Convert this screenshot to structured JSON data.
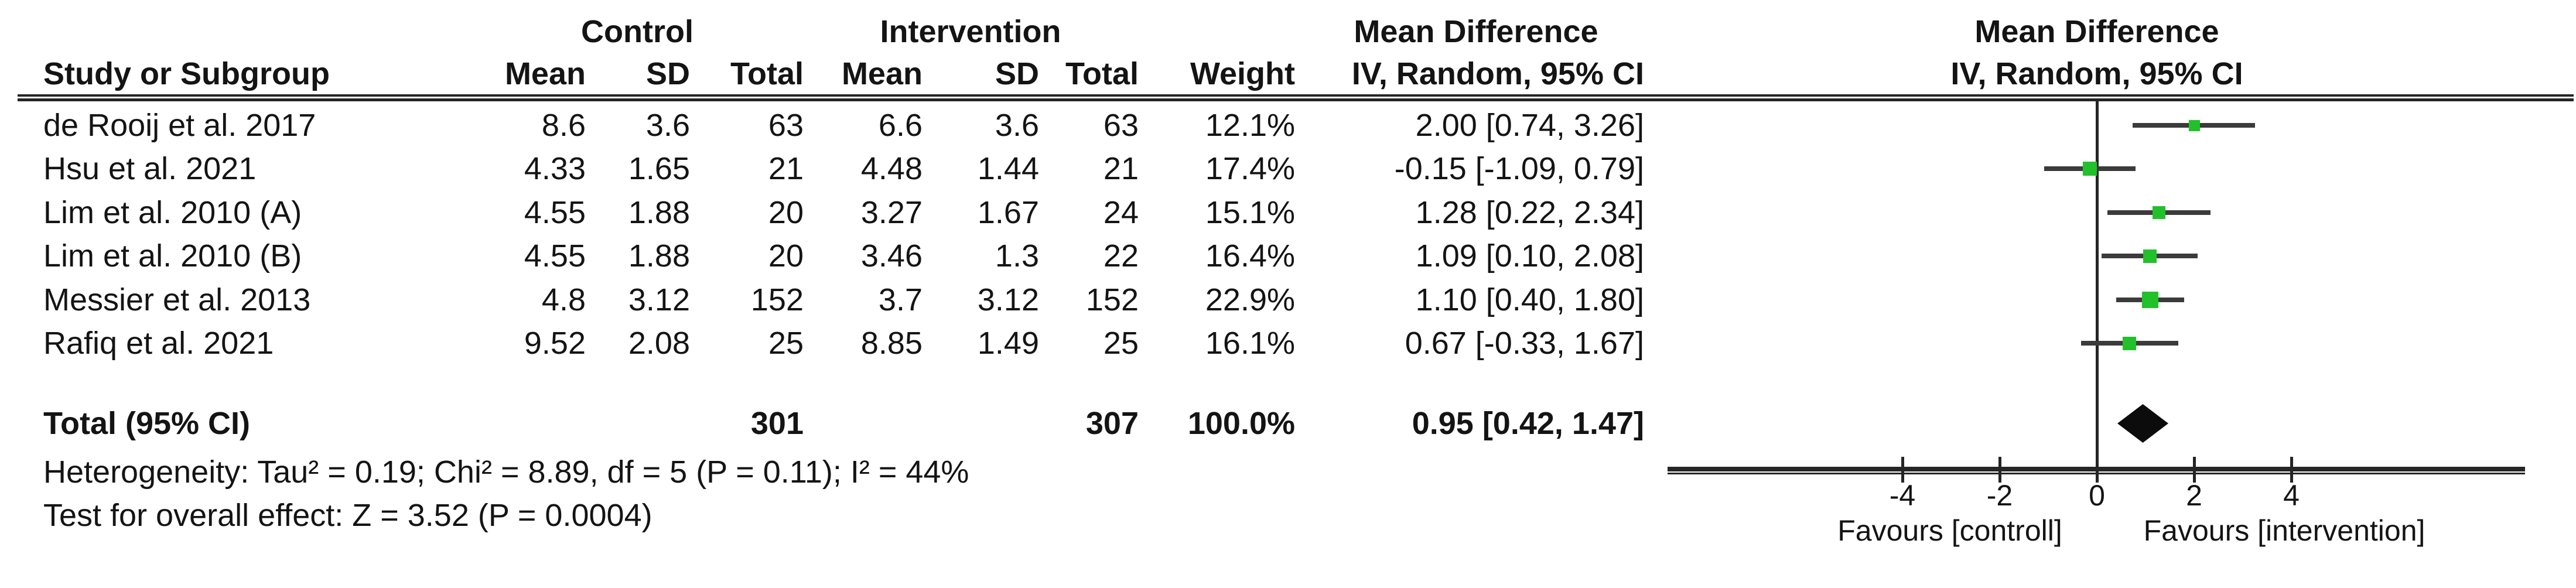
{
  "headers": {
    "study_col": "Study or Subgroup",
    "group_control": "Control",
    "group_intervention": "Intervention",
    "md_table_line1": "Mean Difference",
    "md_table_line2": "IV, Random, 95% CI",
    "md_plot_line1": "Mean Difference",
    "md_plot_line2": "IV, Random, 95% CI",
    "sub_headers": [
      "Mean",
      "SD",
      "Total",
      "Mean",
      "SD",
      "Total",
      "Weight"
    ]
  },
  "total_row": {
    "label": "Total (95% CI)",
    "control_total": "301",
    "intervention_total": "307",
    "weight": "100.0%",
    "md_ci_text": "0.95 [0.42, 1.47]"
  },
  "stats": {
    "heterogeneity": "Heterogeneity: Tau² = 0.19; Chi² = 8.89, df = 5 (P = 0.11); I² = 44%",
    "overall_effect": "Test for overall effect: Z = 3.52 (P = 0.0004)"
  },
  "colors": {
    "square_green": "#22c02a",
    "diamond_black": "#0c0c0c",
    "line_dark": "#252525",
    "ci_gray": "#3b3b3b"
  },
  "chart_data": {
    "type": "forest",
    "effect_measure": "Mean Difference",
    "model": "IV, Random, 95% CI",
    "studies": [
      {
        "label": "de Rooij et al. 2017",
        "control": {
          "mean": "8.6",
          "sd": "3.6",
          "total": "63"
        },
        "intervention": {
          "mean": "6.6",
          "sd": "3.6",
          "total": "63"
        },
        "weight": "12.1%",
        "md_ci_text": "2.00 [0.74, 3.26]",
        "md": 2.0,
        "ci_low": 0.74,
        "ci_high": 3.26
      },
      {
        "label": "Hsu et al. 2021",
        "control": {
          "mean": "4.33",
          "sd": "1.65",
          "total": "21"
        },
        "intervention": {
          "mean": "4.48",
          "sd": "1.44",
          "total": "21"
        },
        "weight": "17.4%",
        "md_ci_text": "-0.15 [-1.09, 0.79]",
        "md": -0.15,
        "ci_low": -1.09,
        "ci_high": 0.79
      },
      {
        "label": "Lim et al. 2010 (A)",
        "control": {
          "mean": "4.55",
          "sd": "1.88",
          "total": "20"
        },
        "intervention": {
          "mean": "3.27",
          "sd": "1.67",
          "total": "24"
        },
        "weight": "15.1%",
        "md_ci_text": "1.28 [0.22, 2.34]",
        "md": 1.28,
        "ci_low": 0.22,
        "ci_high": 2.34
      },
      {
        "label": "Lim et al. 2010 (B)",
        "control": {
          "mean": "4.55",
          "sd": "1.88",
          "total": "20"
        },
        "intervention": {
          "mean": "3.46",
          "sd": "1.3",
          "total": "22"
        },
        "weight": "16.4%",
        "md_ci_text": "1.09 [0.10, 2.08]",
        "md": 1.09,
        "ci_low": 0.1,
        "ci_high": 2.08
      },
      {
        "label": "Messier et al. 2013",
        "control": {
          "mean": "4.8",
          "sd": "3.12",
          "total": "152"
        },
        "intervention": {
          "mean": "3.7",
          "sd": "3.12",
          "total": "152"
        },
        "weight": "22.9%",
        "md_ci_text": "1.10 [0.40, 1.80]",
        "md": 1.1,
        "ci_low": 0.4,
        "ci_high": 1.8
      },
      {
        "label": "Rafiq et al. 2021",
        "control": {
          "mean": "9.52",
          "sd": "2.08",
          "total": "25"
        },
        "intervention": {
          "mean": "8.85",
          "sd": "1.49",
          "total": "25"
        },
        "weight": "16.1%",
        "md_ci_text": "0.67 [-0.33, 1.67]",
        "md": 0.67,
        "ci_low": -0.33,
        "ci_high": 1.67
      }
    ],
    "total": {
      "label": "Total (95% CI)",
      "control_total": 301,
      "intervention_total": 307,
      "weight": "100.0%",
      "md": 0.95,
      "ci_low": 0.42,
      "ci_high": 1.47
    },
    "heterogeneity": {
      "tau2": 0.19,
      "chi2": 8.89,
      "df": 5,
      "p": 0.11,
      "i2": "44%"
    },
    "overall_effect": {
      "z": 3.52,
      "p": 0.0004
    },
    "axis": {
      "ticks": [
        -4,
        -2,
        0,
        2,
        4
      ],
      "favours_left": "Favours [controll]",
      "favours_right": "Favours [intervention]"
    }
  }
}
